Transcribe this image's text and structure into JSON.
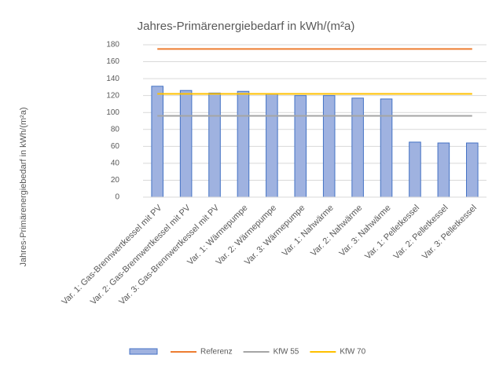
{
  "chart_data": {
    "type": "bar",
    "title": "Jahres-Primärenergiebedarf in kWh/(m²a)",
    "y_label": "Jahres-Primärenergiebedarf in kWh/(m²a)",
    "categories": [
      "Var. 1: Gas-Brennwertkessel mit PV",
      "Var. 2: Gas-Brennwertkessel mit PV",
      "Var. 3: Gas-Brennwertkessel mit PV",
      "Var. 1: Wärmepumpe",
      "Var. 2: Wärmepumpe",
      "Var. 3: Wärmepumpe",
      "Var. 1: Nahwärme",
      "Var. 2: Nahwärme",
      "Var. 3: Nahwärme",
      "Var. 1: Pelletkessel",
      "Var. 2: Pelletkessel",
      "Var. 3: Pelletkessel"
    ],
    "series": [
      {
        "type": "bar",
        "color": "#9fb2e0",
        "values": [
          131,
          126,
          123,
          125,
          122,
          120,
          120,
          117,
          116,
          65,
          64,
          64
        ]
      },
      {
        "type": "line",
        "name": "Referenz",
        "color": "#ed7d31",
        "values": [
          175,
          175,
          175,
          175,
          175,
          175,
          175,
          175,
          175,
          175,
          175,
          175
        ]
      },
      {
        "type": "line",
        "name": "KfW 55",
        "color": "#a5a5a5",
        "values": [
          96,
          96,
          96,
          96,
          96,
          96,
          96,
          96,
          96,
          96,
          96,
          96
        ]
      },
      {
        "type": "line",
        "name": "KfW 70",
        "color": "#ffc000",
        "values": [
          122,
          122,
          122,
          122,
          122,
          122,
          122,
          122,
          122,
          122,
          122,
          122
        ]
      }
    ],
    "ylim": [
      0,
      180
    ],
    "yticks": [
      0,
      20,
      40,
      60,
      80,
      100,
      120,
      140,
      160,
      180
    ],
    "grid": true,
    "legend": "bottom"
  }
}
